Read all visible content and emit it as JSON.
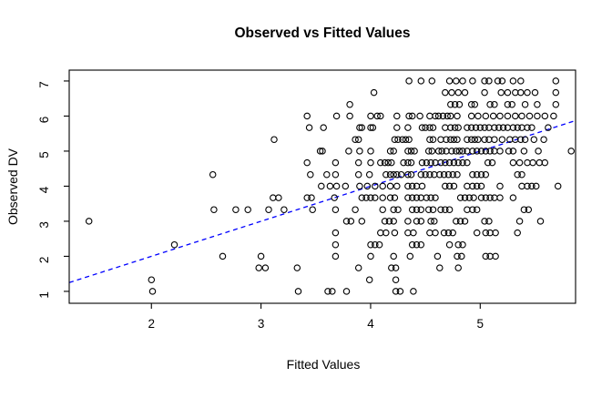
{
  "title": "Observed vs Fitted Values",
  "chart_data": {
    "type": "scatter",
    "title": "Observed vs Fitted Values",
    "xlabel": "Fitted Values",
    "ylabel": "Observed DV",
    "xlim": [
      1.25,
      5.87
    ],
    "ylim": [
      0.66,
      7.31
    ],
    "x_ticks": [
      2,
      3,
      4,
      5
    ],
    "y_ticks": [
      1,
      2,
      3,
      4,
      5,
      6,
      7
    ],
    "grid": false,
    "legend": "none",
    "point_marker": "open-circle",
    "point_color": "#000000",
    "background_color": "#ffffff",
    "reference_line": {
      "name": "identity-line",
      "slope": 1,
      "intercept": 0,
      "style": "dashed",
      "color": "#0000ff"
    },
    "series": [
      {
        "name": "observations",
        "rows": [
          {
            "observed": 7.0,
            "fitted": [
              4.35,
              4.46,
              4.56,
              4.72,
              4.78,
              4.84,
              4.93,
              5.04,
              5.08,
              5.16,
              5.2,
              5.3,
              5.37,
              5.69
            ]
          },
          {
            "observed": 6.67,
            "fitted": [
              4.03,
              4.68,
              4.74,
              4.8,
              4.86,
              5.04,
              5.19,
              5.25,
              5.32,
              5.37,
              5.43,
              5.5,
              5.69
            ]
          },
          {
            "observed": 6.33,
            "fitted": [
              3.81,
              4.73,
              4.77,
              4.81,
              4.92,
              4.95,
              5.09,
              5.13,
              5.25,
              5.29,
              5.41,
              5.52,
              5.69
            ]
          },
          {
            "observed": 6.0,
            "fitted": [
              3.42,
              3.69,
              3.81,
              4.0,
              4.06,
              4.09,
              4.24,
              4.35,
              4.38,
              4.45,
              4.54,
              4.59,
              4.62,
              4.66,
              4.7,
              4.73,
              4.79,
              4.92,
              4.98,
              5.05,
              5.12,
              5.18,
              5.25,
              5.32,
              5.38,
              5.45,
              5.52,
              5.59,
              5.67
            ]
          },
          {
            "observed": 5.67,
            "fitted": [
              3.44,
              3.57,
              3.9,
              3.92,
              4.0,
              4.02,
              4.24,
              4.34,
              4.47,
              4.5,
              4.54,
              4.57,
              4.68,
              4.73,
              4.77,
              4.8,
              4.88,
              4.92,
              4.96,
              5.0,
              5.04,
              5.08,
              5.13,
              5.17,
              5.21,
              5.25,
              5.3,
              5.34,
              5.38,
              5.43,
              5.47,
              5.62
            ]
          },
          {
            "observed": 5.33,
            "fitted": [
              3.12,
              3.86,
              3.89,
              4.22,
              4.25,
              4.29,
              4.32,
              4.35,
              4.54,
              4.57,
              4.64,
              4.69,
              4.73,
              4.76,
              4.79,
              4.88,
              4.92,
              4.95,
              4.98,
              5.04,
              5.08,
              5.13,
              5.2,
              5.27,
              5.32,
              5.37,
              5.41,
              5.49,
              5.58
            ]
          },
          {
            "observed": 5.0,
            "fitted": [
              3.54,
              3.56,
              3.8,
              3.9,
              4.0,
              4.18,
              4.21,
              4.34,
              4.37,
              4.4,
              4.53,
              4.56,
              4.62,
              4.65,
              4.69,
              4.74,
              4.78,
              4.81,
              4.84,
              4.88,
              4.93,
              4.97,
              5.01,
              5.05,
              5.09,
              5.13,
              5.18,
              5.26,
              5.3,
              5.4,
              5.53,
              5.83
            ]
          },
          {
            "observed": 4.67,
            "fitted": [
              3.42,
              3.68,
              3.89,
              4.0,
              4.09,
              4.13,
              4.16,
              4.19,
              4.3,
              4.34,
              4.37,
              4.47,
              4.51,
              4.55,
              4.59,
              4.64,
              4.68,
              4.72,
              4.76,
              4.8,
              4.84,
              4.88,
              5.07,
              5.11,
              5.3,
              5.36,
              5.43,
              5.48,
              5.54,
              5.59
            ]
          },
          {
            "observed": 4.33,
            "fitted": [
              2.56,
              3.45,
              3.6,
              3.68,
              3.89,
              3.99,
              4.14,
              4.18,
              4.21,
              4.24,
              4.28,
              4.34,
              4.37,
              4.46,
              4.5,
              4.54,
              4.58,
              4.63,
              4.67,
              4.71,
              4.75,
              4.79,
              4.93,
              4.97,
              5.01,
              5.05,
              5.34,
              5.38
            ]
          },
          {
            "observed": 4.0,
            "fitted": [
              3.55,
              3.63,
              3.69,
              3.77,
              3.9,
              3.97,
              4.04,
              4.11,
              4.18,
              4.24,
              4.34,
              4.38,
              4.42,
              4.47,
              4.68,
              4.72,
              4.76,
              4.88,
              4.93,
              4.97,
              5.01,
              5.18,
              5.38,
              5.43,
              5.47,
              5.51,
              5.71
            ]
          },
          {
            "observed": 3.67,
            "fitted": [
              3.11,
              3.16,
              3.42,
              3.46,
              3.67,
              3.92,
              3.96,
              4.0,
              4.04,
              4.11,
              4.18,
              4.22,
              4.34,
              4.38,
              4.42,
              4.46,
              4.51,
              4.55,
              4.59,
              4.82,
              4.86,
              4.9,
              4.94,
              5.01,
              5.05,
              5.09,
              5.13,
              5.18,
              5.3
            ]
          },
          {
            "observed": 3.33,
            "fitted": [
              2.57,
              2.77,
              2.88,
              3.07,
              3.21,
              3.47,
              3.68,
              3.86,
              4.11,
              4.21,
              4.25,
              4.38,
              4.42,
              4.46,
              4.53,
              4.57,
              4.64,
              4.68,
              4.72,
              4.88,
              4.93,
              4.97,
              5.4,
              5.44
            ]
          },
          {
            "observed": 3.0,
            "fitted": [
              1.43,
              3.78,
              3.82,
              3.92,
              4.13,
              4.17,
              4.21,
              4.34,
              4.42,
              4.46,
              4.55,
              4.58,
              4.78,
              4.82,
              4.86,
              5.04,
              5.08,
              5.36,
              5.55
            ]
          },
          {
            "observed": 2.67,
            "fitted": [
              3.68,
              4.09,
              4.14,
              4.22,
              4.34,
              4.39,
              4.54,
              4.59,
              4.67,
              4.71,
              4.75,
              4.97,
              5.05,
              5.09,
              5.14,
              5.34
            ]
          },
          {
            "observed": 2.33,
            "fitted": [
              2.21,
              3.68,
              4.0,
              4.04,
              4.08,
              4.38,
              4.42,
              4.46,
              4.72,
              4.8,
              4.84
            ]
          },
          {
            "observed": 2.0,
            "fitted": [
              2.65,
              3.0,
              3.68,
              4.0,
              4.21,
              4.36,
              4.61,
              4.79,
              4.83,
              5.05,
              5.09,
              5.14
            ]
          },
          {
            "observed": 1.67,
            "fitted": [
              2.98,
              3.04,
              3.33,
              3.89,
              4.19,
              4.23,
              4.63,
              4.8
            ]
          },
          {
            "observed": 1.33,
            "fitted": [
              2.0,
              3.99,
              4.23
            ]
          },
          {
            "observed": 1.0,
            "fitted": [
              2.01,
              3.34,
              3.61,
              3.65,
              3.78,
              4.23,
              4.27,
              4.39
            ]
          }
        ]
      }
    ]
  }
}
